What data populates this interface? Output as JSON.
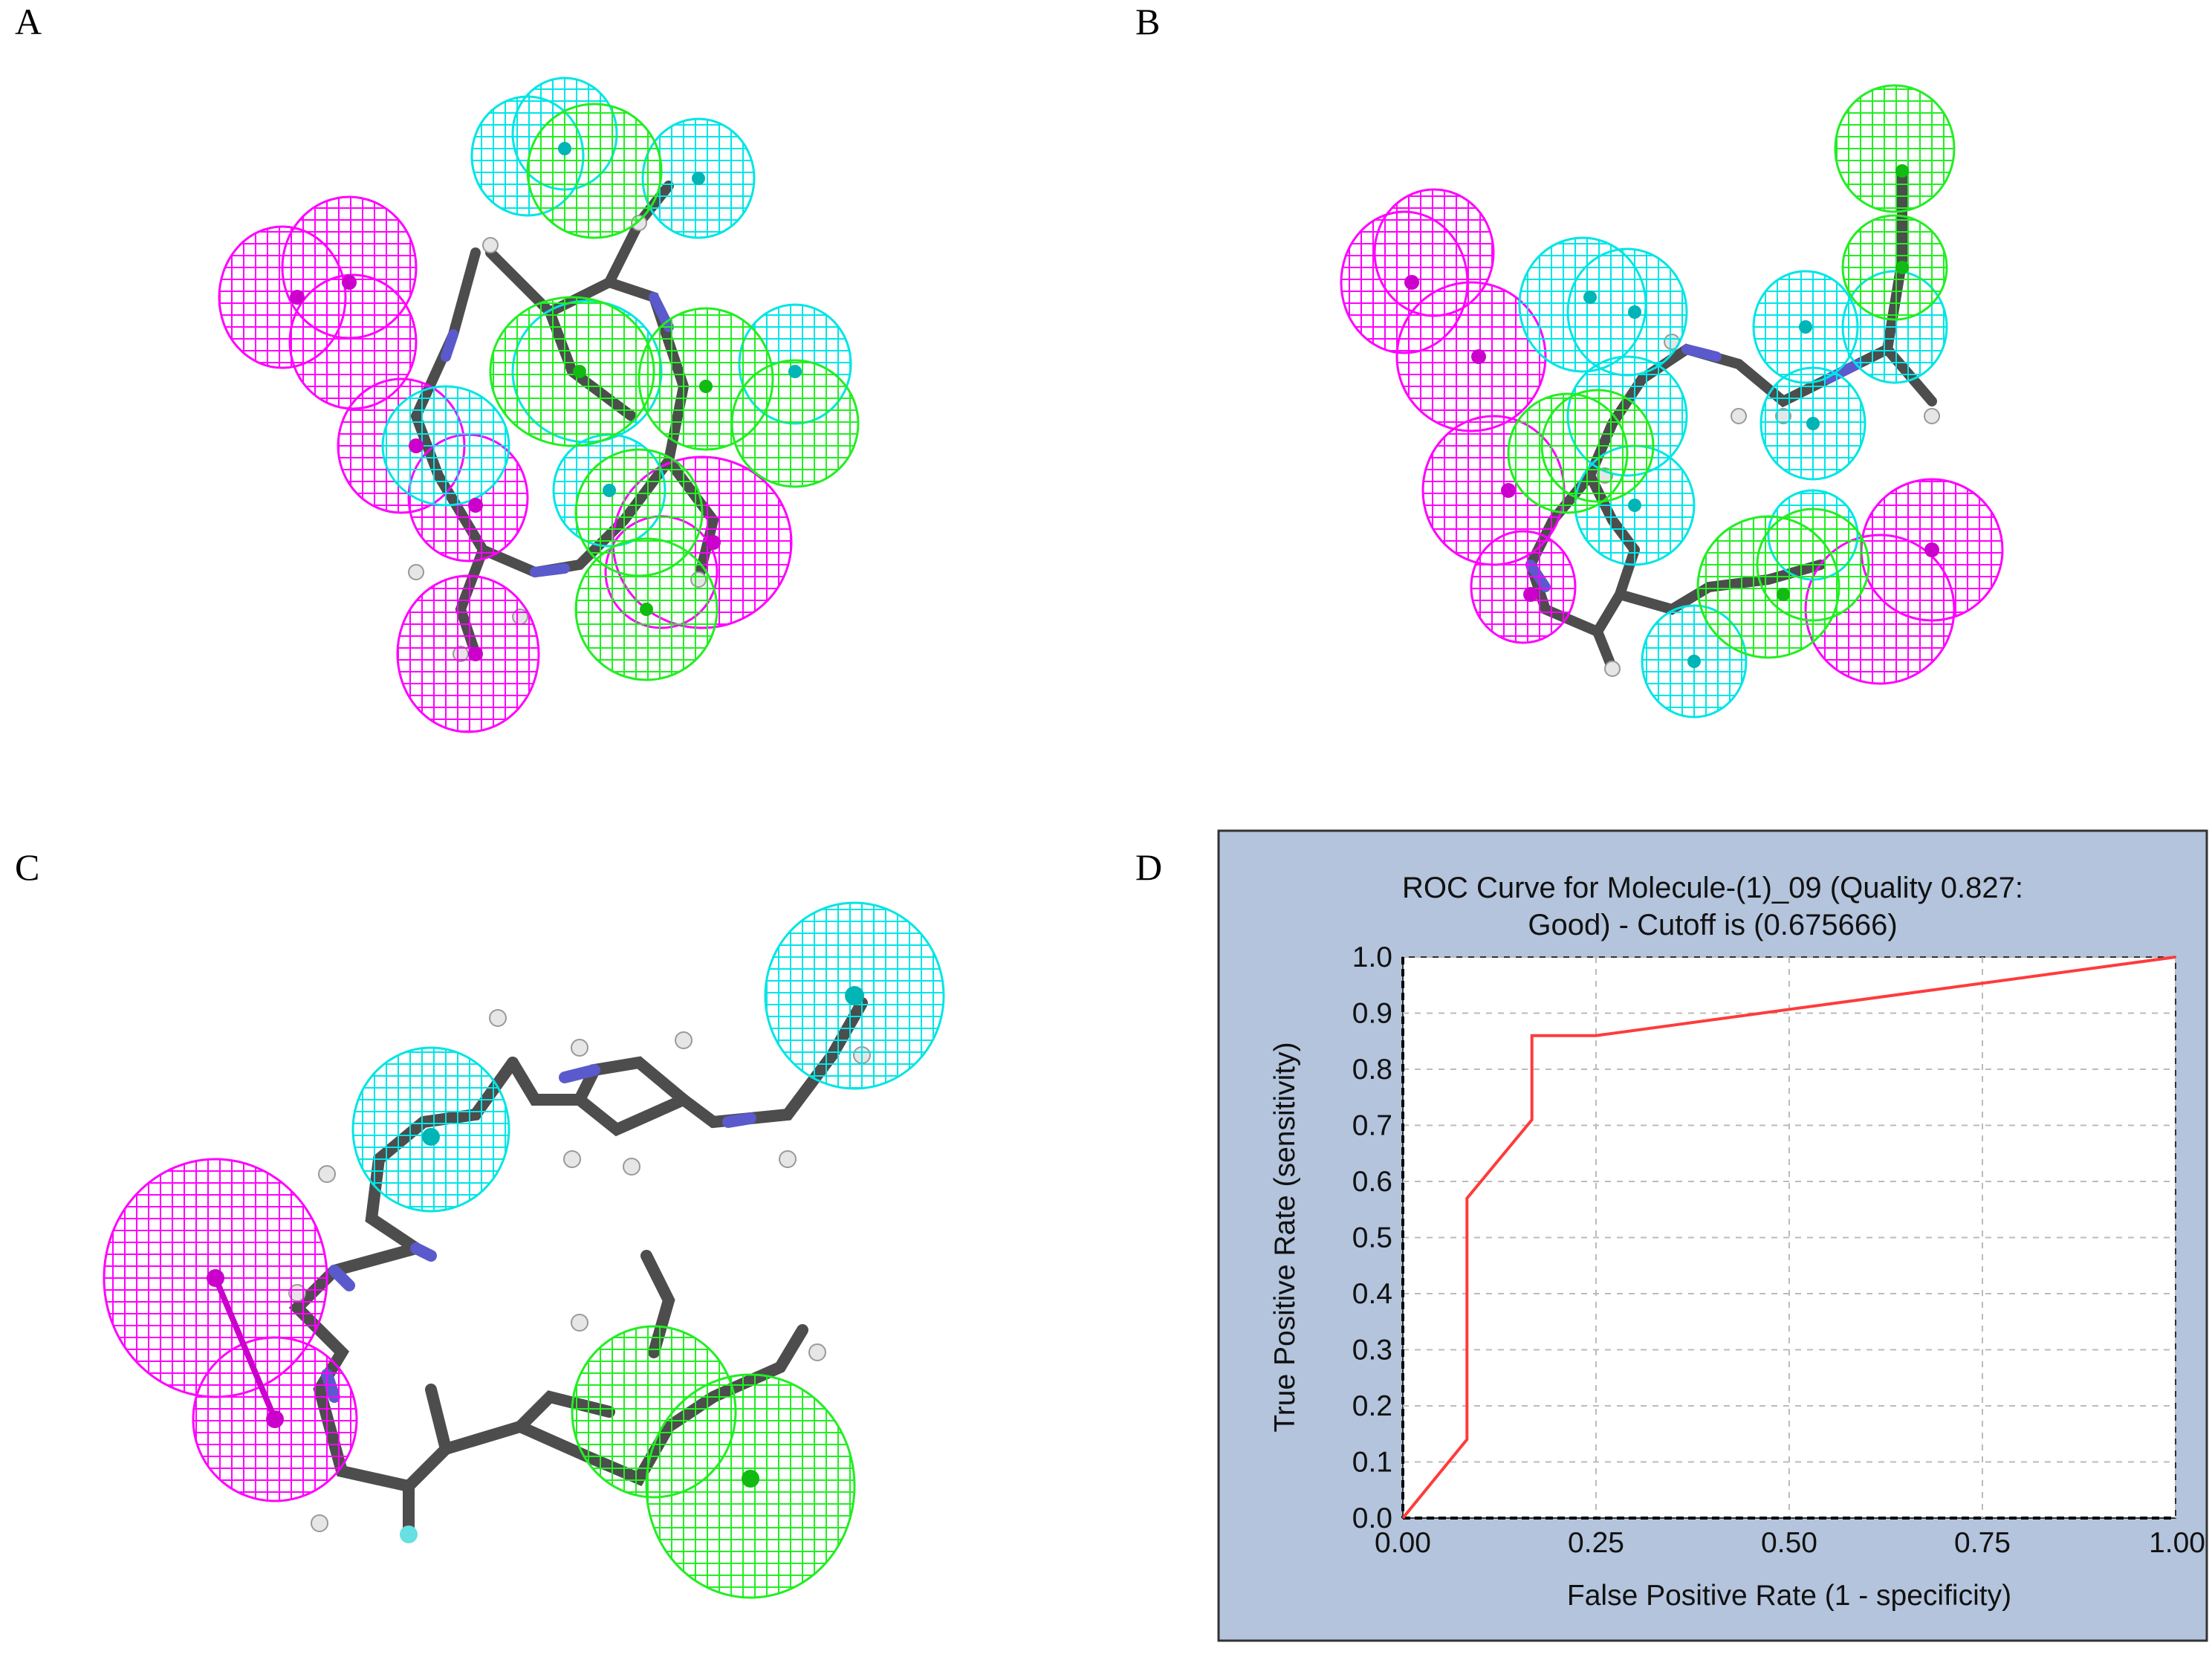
{
  "panels": {
    "a": "A",
    "b": "B",
    "c": "C",
    "d": "D"
  },
  "colors": {
    "hydrophobic": "#ff00ff",
    "hbond_acceptor": "#00e5e5",
    "hbond_donor": "#22ee22",
    "bond_carbon": "#4d4d4d",
    "bond_nitrogen": "#5a5acc",
    "hydrogen": "#e6e6e6",
    "fluorine": "#66e0e0",
    "roc_background": "#b3c4dc",
    "roc_plot_bg": "#ffffff",
    "roc_line": "#ff3b3b"
  },
  "chart_data": {
    "type": "line",
    "title_line1": "ROC Curve for  Molecule-(1)_09  (Quality 0.827:",
    "title_line2": "Good)  - Cutoff is (0.675666)",
    "xlabel": "False Positive Rate (1 - specificity)",
    "ylabel": "True Positive Rate (sensitivity)",
    "xlim": [
      0,
      1
    ],
    "ylim": [
      0,
      1
    ],
    "x_ticks": [
      "0.00",
      "0.25",
      "0.50",
      "0.75",
      "1.00"
    ],
    "y_ticks": [
      "0.0",
      "0.1",
      "0.2",
      "0.3",
      "0.4",
      "0.5",
      "0.6",
      "0.7",
      "0.8",
      "0.9",
      "1.0"
    ],
    "grid": true,
    "series": [
      {
        "x": [
          0.0,
          0.083,
          0.083,
          0.083,
          0.167,
          0.167,
          0.167,
          0.25,
          1.0
        ],
        "y": [
          0.0,
          0.14,
          0.14,
          0.57,
          0.71,
          0.71,
          0.86,
          0.86,
          1.0
        ]
      }
    ]
  }
}
